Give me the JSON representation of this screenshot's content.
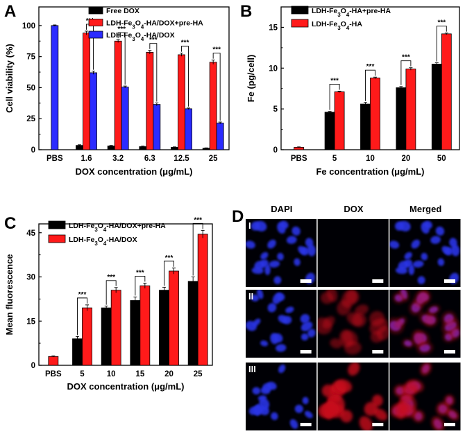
{
  "chart_data": [
    {
      "panel": "A",
      "type": "bar",
      "ylabel": "Cell viability (%)",
      "xlabel": "DOX concentration (μg/mL)",
      "ylim": [
        0,
        115
      ],
      "yticks": [
        "0",
        "25",
        "50",
        "75",
        "100"
      ],
      "categories": [
        "PBS",
        "1.6",
        "3.2",
        "6.3",
        "12.5",
        "25"
      ],
      "series": [
        {
          "name": "Free DOX",
          "color": "#000000",
          "values": [
            null,
            3.5,
            3,
            2.5,
            2,
            1.2
          ],
          "errors": [
            0,
            0.5,
            0.5,
            0.4,
            0.3,
            0.3
          ]
        },
        {
          "name": "LDH-Fe₃O₄-HA/DOX+pre-HA",
          "color": "#ff1a1a",
          "values": [
            null,
            94,
            87.5,
            78.5,
            76.5,
            70.5
          ],
          "errors": [
            0,
            1.5,
            1.2,
            1.5,
            1.3,
            1.7
          ]
        },
        {
          "name": "LDH-Fe₃O₄-HA/DOX",
          "color": "#2b2bff",
          "values": [
            100,
            62,
            50.5,
            36.5,
            33,
            21.5
          ],
          "errors": [
            0.5,
            1.3,
            0.8,
            1.2,
            0.6,
            0.8
          ]
        }
      ],
      "significance": "***",
      "legend": "top-right"
    },
    {
      "panel": "B",
      "type": "bar",
      "ylabel": "Fe (pg/cell)",
      "xlabel": "Fe concentration (μg/mL)",
      "ylim": [
        0,
        17.5
      ],
      "yticks": [
        "0",
        "5",
        "10",
        "15"
      ],
      "categories": [
        "PBS",
        "5",
        "10",
        "20",
        "50"
      ],
      "series": [
        {
          "name": "LDH-Fe₃O₄-HA+pre-HA",
          "color": "#000000",
          "values": [
            null,
            4.6,
            5.6,
            7.6,
            10.5
          ],
          "errors": [
            0,
            0.1,
            0.2,
            0.15,
            0.15
          ]
        },
        {
          "name": "LDH-Fe₃O₄-HA",
          "color": "#ff1a1a",
          "values": [
            0.3,
            7.1,
            8.8,
            9.9,
            14.2
          ],
          "errors": [
            0.05,
            0.08,
            0.1,
            0.15,
            0.1
          ]
        }
      ],
      "significance": "***",
      "legend": "top-left"
    },
    {
      "panel": "C",
      "type": "bar",
      "ylabel": "Mean fluorescence",
      "xlabel": "DOX concentration (μg/mL)",
      "ylim": [
        0,
        48
      ],
      "yticks": [
        "0",
        "15",
        "30",
        "45"
      ],
      "categories": [
        "PBS",
        "5",
        "10",
        "15",
        "20",
        "25"
      ],
      "series": [
        {
          "name": "LDH-Fe₃O₄-HA/DOX+pre-HA",
          "color": "#000000",
          "values": [
            null,
            9,
            19.5,
            22,
            25.5,
            28.5
          ],
          "errors": [
            0,
            0.8,
            0.6,
            1.2,
            1,
            1.5
          ]
        },
        {
          "name": "LDH-Fe₃O₄-HA/DOX",
          "color": "#ff1a1a",
          "values": [
            3,
            19.5,
            25.5,
            27,
            32,
            44.5
          ],
          "errors": [
            0.2,
            1,
            0.9,
            0.9,
            1,
            1.3
          ]
        }
      ],
      "significance": "***",
      "legend": "top-left"
    }
  ],
  "panels": {
    "A": "A",
    "B": "B",
    "C": "C",
    "D": "D"
  },
  "micrographs": {
    "columns": [
      "DAPI",
      "DOX",
      "Merged"
    ],
    "rows": [
      "I",
      "II",
      "III"
    ]
  }
}
